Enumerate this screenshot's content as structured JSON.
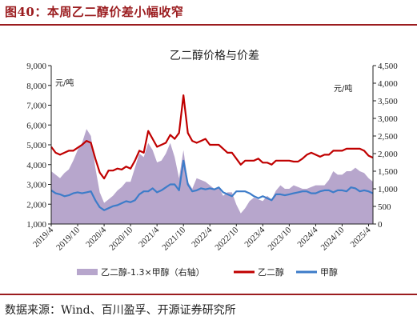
{
  "header": {
    "figure_title": "图40：本周乙二醇价差小幅收窄"
  },
  "footer": {
    "source": "数据来源：Wind、百川盈孚、开源证券研究所"
  },
  "colors": {
    "accent": "#9b1c1f",
    "spread": "#b7a6cc",
    "meg": "#c00000",
    "methanol": "#3d7cc9"
  },
  "chart_data": {
    "type": "line",
    "title": "乙二醇价格与价差",
    "left_axis_unit": "元/吨",
    "right_axis_unit": "元/吨",
    "ylim_left": [
      1000,
      9000
    ],
    "ylim_right": [
      0,
      4500
    ],
    "yticks_left": [
      "1,000",
      "2,000",
      "3,000",
      "4,000",
      "5,000",
      "6,000",
      "7,000",
      "8,000",
      "9,000"
    ],
    "yticks_right": [
      "0",
      "500",
      "1,000",
      "1,500",
      "2,000",
      "2,500",
      "3,000",
      "3,500",
      "4,000",
      "4,500"
    ],
    "x_ticks": [
      "2019/4",
      "2019/10",
      "2020/4",
      "2020/10",
      "2021/4",
      "2021/10",
      "2022/4",
      "2022/10",
      "2023/4",
      "2023/10",
      "2024/4",
      "2024/10",
      "2025/4"
    ],
    "x": [
      "2019-04",
      "2019-05",
      "2019-06",
      "2019-07",
      "2019-08",
      "2019-09",
      "2019-10",
      "2019-11",
      "2019-12",
      "2020-01",
      "2020-02",
      "2020-03",
      "2020-04",
      "2020-05",
      "2020-06",
      "2020-07",
      "2020-08",
      "2020-09",
      "2020-10",
      "2020-11",
      "2020-12",
      "2021-01",
      "2021-02",
      "2021-03",
      "2021-04",
      "2021-05",
      "2021-06",
      "2021-07",
      "2021-08",
      "2021-09",
      "2021-10",
      "2021-11",
      "2021-12",
      "2022-01",
      "2022-02",
      "2022-03",
      "2022-04",
      "2022-05",
      "2022-06",
      "2022-07",
      "2022-08",
      "2022-09",
      "2022-10",
      "2022-11",
      "2022-12",
      "2023-01",
      "2023-02",
      "2023-03",
      "2023-04",
      "2023-05",
      "2023-06",
      "2023-07",
      "2023-08",
      "2023-09",
      "2023-10",
      "2023-11",
      "2023-12",
      "2024-01",
      "2024-02",
      "2024-03",
      "2024-04",
      "2024-05",
      "2024-06",
      "2024-07",
      "2024-08",
      "2024-09",
      "2024-10",
      "2024-11",
      "2024-12",
      "2025-01",
      "2025-02",
      "2025-03",
      "2025-04",
      "2025-05"
    ],
    "series": [
      {
        "name": "乙二醇-1.3×甲醇（右轴）",
        "axis": "right",
        "style": "area",
        "values": [
          1500,
          1400,
          1300,
          1450,
          1550,
          1800,
          2100,
          2300,
          2700,
          2500,
          1600,
          900,
          600,
          700,
          800,
          950,
          1050,
          1200,
          1200,
          1600,
          2000,
          1900,
          2300,
          2100,
          1750,
          1800,
          2000,
          2300,
          1900,
          1300,
          2100,
          1200,
          1000,
          1300,
          1250,
          1200,
          1100,
          1000,
          1050,
          800,
          900,
          900,
          550,
          300,
          450,
          650,
          750,
          700,
          650,
          800,
          700,
          950,
          1100,
          1000,
          1000,
          1100,
          1050,
          1000,
          1000,
          1050,
          1100,
          1100,
          1100,
          1250,
          1500,
          1400,
          1400,
          1500,
          1500,
          1600,
          1500,
          1450,
          1300,
          1200
        ]
      },
      {
        "name": "乙二醇",
        "axis": "left",
        "style": "line",
        "values": [
          4900,
          4600,
          4500,
          4600,
          4700,
          4700,
          4850,
          5000,
          5200,
          5100,
          4300,
          3600,
          3300,
          3700,
          3700,
          3800,
          3750,
          3900,
          3800,
          4200,
          4700,
          4600,
          5700,
          5300,
          4900,
          5000,
          5100,
          5500,
          5300,
          5600,
          7500,
          5600,
          5200,
          5100,
          5200,
          5300,
          5000,
          5000,
          5000,
          4800,
          4600,
          4600,
          4300,
          4000,
          4200,
          4200,
          4200,
          4300,
          4100,
          4100,
          4000,
          4200,
          4200,
          4200,
          4200,
          4150,
          4150,
          4300,
          4500,
          4600,
          4500,
          4400,
          4500,
          4500,
          4700,
          4700,
          4700,
          4800,
          4800,
          4800,
          4800,
          4700,
          4450,
          4350
        ]
      },
      {
        "name": "甲醇",
        "axis": "left",
        "style": "line",
        "values": [
          2700,
          2550,
          2500,
          2400,
          2450,
          2550,
          2600,
          2550,
          2600,
          2650,
          2200,
          1850,
          1700,
          1800,
          1900,
          1950,
          2050,
          2150,
          2100,
          2200,
          2500,
          2650,
          2650,
          2800,
          2600,
          2700,
          2850,
          3000,
          3000,
          2700,
          4200,
          3000,
          2650,
          2700,
          2800,
          2750,
          2800,
          2750,
          2850,
          2600,
          2500,
          2400,
          2650,
          2650,
          2650,
          2550,
          2400,
          2300,
          2400,
          2300,
          2200,
          2500,
          2500,
          2450,
          2500,
          2550,
          2600,
          2650,
          2650,
          2550,
          2550,
          2650,
          2700,
          2700,
          2600,
          2700,
          2700,
          2650,
          2850,
          2800,
          2650,
          2700,
          2650,
          2550
        ]
      }
    ],
    "legend_position": "bottom",
    "grid": false
  }
}
